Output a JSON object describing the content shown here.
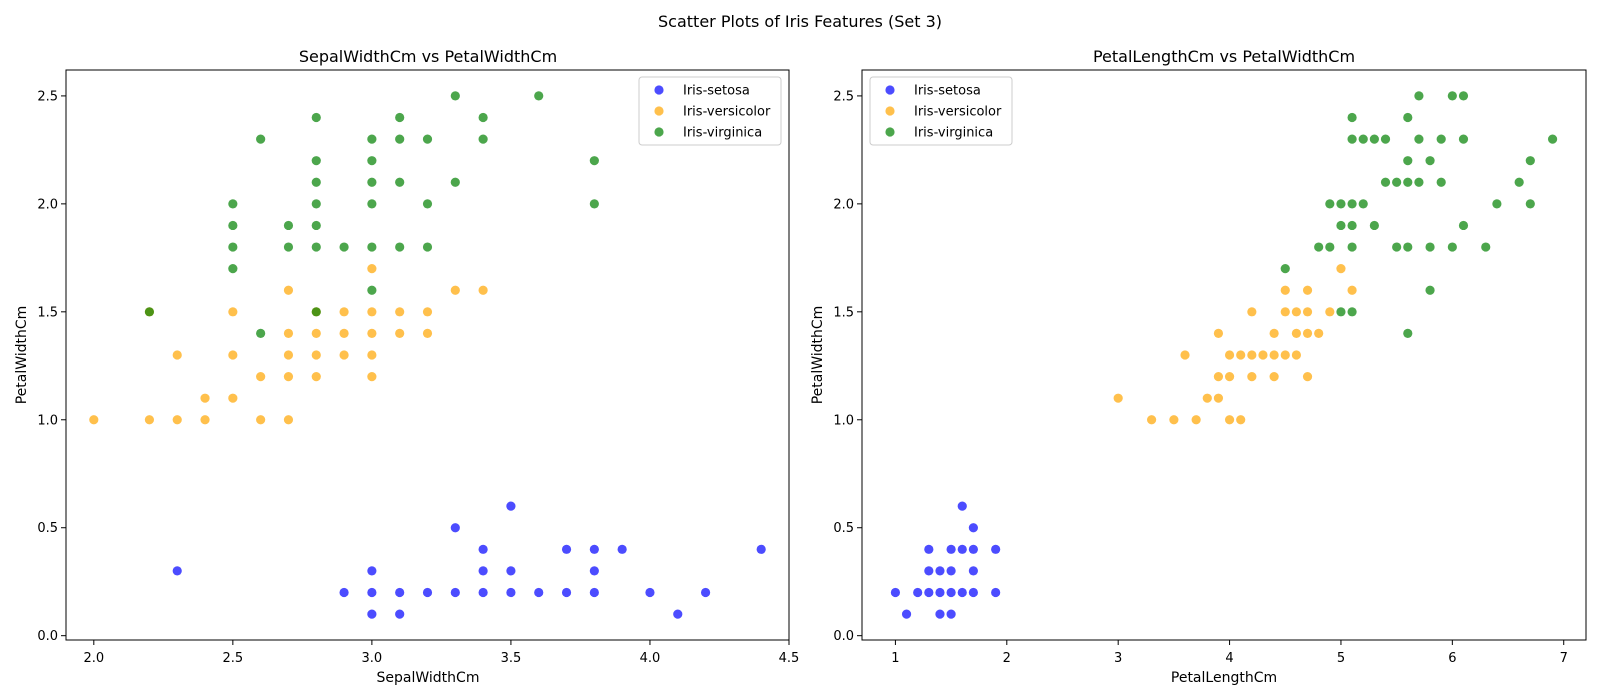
{
  "suptitle": "Scatter Plots of Iris Features (Set 3)",
  "colors": {
    "Iris-setosa": "#0000ff",
    "Iris-versicolor": "#ffa500",
    "Iris-virginica": "#008000"
  },
  "chart_data": [
    {
      "type": "scatter",
      "title": "SepalWidthCm vs PetalWidthCm",
      "xlabel": "SepalWidthCm",
      "ylabel": "PetalWidthCm",
      "xlim": [
        1.9,
        4.5
      ],
      "ylim": [
        -0.02,
        2.62
      ],
      "xticks": [
        2.0,
        2.5,
        3.0,
        3.5,
        4.0,
        4.5
      ],
      "yticks": [
        0.0,
        0.5,
        1.0,
        1.5,
        2.0,
        2.5
      ],
      "xtick_labels": [
        "2.0",
        "2.5",
        "3.0",
        "3.5",
        "4.0",
        "4.5"
      ],
      "ytick_labels": [
        "0.0",
        "0.5",
        "1.0",
        "1.5",
        "2.0",
        "2.5"
      ],
      "legend_position": "top-right",
      "series": [
        {
          "name": "Iris-setosa",
          "points": [
            [
              2.3,
              0.3
            ],
            [
              2.9,
              0.2
            ],
            [
              3.0,
              0.2
            ],
            [
              3.0,
              0.3
            ],
            [
              3.0,
              0.1
            ],
            [
              3.1,
              0.2
            ],
            [
              3.1,
              0.1
            ],
            [
              3.2,
              0.2
            ],
            [
              3.3,
              0.2
            ],
            [
              3.3,
              0.5
            ],
            [
              3.4,
              0.2
            ],
            [
              3.4,
              0.3
            ],
            [
              3.4,
              0.4
            ],
            [
              3.5,
              0.2
            ],
            [
              3.5,
              0.3
            ],
            [
              3.5,
              0.6
            ],
            [
              3.6,
              0.2
            ],
            [
              3.7,
              0.2
            ],
            [
              3.7,
              0.4
            ],
            [
              3.8,
              0.2
            ],
            [
              3.8,
              0.3
            ],
            [
              3.8,
              0.4
            ],
            [
              3.9,
              0.4
            ],
            [
              4.0,
              0.2
            ],
            [
              4.1,
              0.1
            ],
            [
              4.2,
              0.2
            ],
            [
              4.4,
              0.4
            ]
          ]
        },
        {
          "name": "Iris-versicolor",
          "points": [
            [
              2.0,
              1.0
            ],
            [
              2.2,
              1.0
            ],
            [
              2.2,
              1.5
            ],
            [
              2.3,
              1.0
            ],
            [
              2.3,
              1.3
            ],
            [
              2.4,
              1.0
            ],
            [
              2.4,
              1.1
            ],
            [
              2.5,
              1.1
            ],
            [
              2.5,
              1.3
            ],
            [
              2.5,
              1.5
            ],
            [
              2.6,
              1.0
            ],
            [
              2.6,
              1.2
            ],
            [
              2.7,
              1.0
            ],
            [
              2.7,
              1.2
            ],
            [
              2.7,
              1.3
            ],
            [
              2.7,
              1.4
            ],
            [
              2.7,
              1.6
            ],
            [
              2.8,
              1.2
            ],
            [
              2.8,
              1.3
            ],
            [
              2.8,
              1.4
            ],
            [
              2.8,
              1.5
            ],
            [
              2.9,
              1.3
            ],
            [
              2.9,
              1.4
            ],
            [
              2.9,
              1.5
            ],
            [
              3.0,
              1.2
            ],
            [
              3.0,
              1.3
            ],
            [
              3.0,
              1.4
            ],
            [
              3.0,
              1.5
            ],
            [
              3.0,
              1.7
            ],
            [
              3.1,
              1.4
            ],
            [
              3.1,
              1.5
            ],
            [
              3.2,
              1.4
            ],
            [
              3.2,
              1.5
            ],
            [
              3.3,
              1.6
            ],
            [
              3.4,
              1.6
            ]
          ]
        },
        {
          "name": "Iris-virginica",
          "points": [
            [
              2.2,
              1.5
            ],
            [
              2.5,
              1.7
            ],
            [
              2.5,
              1.8
            ],
            [
              2.5,
              1.9
            ],
            [
              2.5,
              2.0
            ],
            [
              2.6,
              1.4
            ],
            [
              2.6,
              2.3
            ],
            [
              2.7,
              1.8
            ],
            [
              2.7,
              1.9
            ],
            [
              2.8,
              1.5
            ],
            [
              2.8,
              1.8
            ],
            [
              2.8,
              1.9
            ],
            [
              2.8,
              2.0
            ],
            [
              2.8,
              2.1
            ],
            [
              2.8,
              2.2
            ],
            [
              2.8,
              2.4
            ],
            [
              2.9,
              1.8
            ],
            [
              3.0,
              1.6
            ],
            [
              3.0,
              1.8
            ],
            [
              3.0,
              2.0
            ],
            [
              3.0,
              2.1
            ],
            [
              3.0,
              2.2
            ],
            [
              3.0,
              2.3
            ],
            [
              3.1,
              1.8
            ],
            [
              3.1,
              2.1
            ],
            [
              3.1,
              2.3
            ],
            [
              3.1,
              2.4
            ],
            [
              3.2,
              1.8
            ],
            [
              3.2,
              2.0
            ],
            [
              3.2,
              2.3
            ],
            [
              3.3,
              2.1
            ],
            [
              3.3,
              2.5
            ],
            [
              3.4,
              2.3
            ],
            [
              3.4,
              2.4
            ],
            [
              3.6,
              2.5
            ],
            [
              3.8,
              2.0
            ],
            [
              3.8,
              2.2
            ]
          ]
        }
      ]
    },
    {
      "type": "scatter",
      "title": "PetalLengthCm vs PetalWidthCm",
      "xlabel": "PetalLengthCm",
      "ylabel": "PetalWidthCm",
      "xlim": [
        0.7,
        7.2
      ],
      "ylim": [
        -0.02,
        2.62
      ],
      "xticks": [
        1,
        2,
        3,
        4,
        5,
        6,
        7
      ],
      "yticks": [
        0.0,
        0.5,
        1.0,
        1.5,
        2.0,
        2.5
      ],
      "xtick_labels": [
        "1",
        "2",
        "3",
        "4",
        "5",
        "6",
        "7"
      ],
      "ytick_labels": [
        "0.0",
        "0.5",
        "1.0",
        "1.5",
        "2.0",
        "2.5"
      ],
      "legend_position": "top-left",
      "series": [
        {
          "name": "Iris-setosa",
          "points": [
            [
              1.0,
              0.2
            ],
            [
              1.1,
              0.1
            ],
            [
              1.2,
              0.2
            ],
            [
              1.3,
              0.2
            ],
            [
              1.3,
              0.3
            ],
            [
              1.3,
              0.4
            ],
            [
              1.4,
              0.1
            ],
            [
              1.4,
              0.2
            ],
            [
              1.4,
              0.3
            ],
            [
              1.5,
              0.1
            ],
            [
              1.5,
              0.2
            ],
            [
              1.5,
              0.3
            ],
            [
              1.5,
              0.4
            ],
            [
              1.6,
              0.2
            ],
            [
              1.6,
              0.4
            ],
            [
              1.6,
              0.6
            ],
            [
              1.7,
              0.2
            ],
            [
              1.7,
              0.3
            ],
            [
              1.7,
              0.4
            ],
            [
              1.7,
              0.5
            ],
            [
              1.9,
              0.2
            ],
            [
              1.9,
              0.4
            ]
          ]
        },
        {
          "name": "Iris-versicolor",
          "points": [
            [
              3.0,
              1.1
            ],
            [
              3.3,
              1.0
            ],
            [
              3.5,
              1.0
            ],
            [
              3.6,
              1.3
            ],
            [
              3.7,
              1.0
            ],
            [
              3.8,
              1.1
            ],
            [
              3.9,
              1.1
            ],
            [
              3.9,
              1.2
            ],
            [
              3.9,
              1.4
            ],
            [
              4.0,
              1.0
            ],
            [
              4.0,
              1.2
            ],
            [
              4.0,
              1.3
            ],
            [
              4.1,
              1.0
            ],
            [
              4.1,
              1.3
            ],
            [
              4.2,
              1.2
            ],
            [
              4.2,
              1.3
            ],
            [
              4.2,
              1.5
            ],
            [
              4.3,
              1.3
            ],
            [
              4.4,
              1.2
            ],
            [
              4.4,
              1.3
            ],
            [
              4.4,
              1.4
            ],
            [
              4.5,
              1.3
            ],
            [
              4.5,
              1.5
            ],
            [
              4.5,
              1.6
            ],
            [
              4.6,
              1.3
            ],
            [
              4.6,
              1.4
            ],
            [
              4.6,
              1.5
            ],
            [
              4.7,
              1.2
            ],
            [
              4.7,
              1.4
            ],
            [
              4.7,
              1.5
            ],
            [
              4.7,
              1.6
            ],
            [
              4.8,
              1.4
            ],
            [
              4.9,
              1.5
            ],
            [
              5.0,
              1.7
            ],
            [
              5.1,
              1.6
            ]
          ]
        },
        {
          "name": "Iris-virginica",
          "points": [
            [
              4.5,
              1.7
            ],
            [
              4.8,
              1.8
            ],
            [
              4.9,
              1.8
            ],
            [
              4.9,
              2.0
            ],
            [
              5.0,
              1.5
            ],
            [
              5.0,
              1.9
            ],
            [
              5.0,
              2.0
            ],
            [
              5.1,
              1.5
            ],
            [
              5.1,
              1.8
            ],
            [
              5.1,
              1.9
            ],
            [
              5.1,
              2.0
            ],
            [
              5.1,
              2.3
            ],
            [
              5.1,
              2.4
            ],
            [
              5.2,
              2.0
            ],
            [
              5.2,
              2.3
            ],
            [
              5.3,
              1.9
            ],
            [
              5.3,
              2.3
            ],
            [
              5.4,
              2.1
            ],
            [
              5.4,
              2.3
            ],
            [
              5.5,
              1.8
            ],
            [
              5.5,
              2.1
            ],
            [
              5.6,
              1.4
            ],
            [
              5.6,
              1.8
            ],
            [
              5.6,
              2.1
            ],
            [
              5.6,
              2.2
            ],
            [
              5.6,
              2.4
            ],
            [
              5.7,
              2.1
            ],
            [
              5.7,
              2.3
            ],
            [
              5.7,
              2.5
            ],
            [
              5.8,
              1.6
            ],
            [
              5.8,
              1.8
            ],
            [
              5.8,
              2.2
            ],
            [
              5.9,
              2.1
            ],
            [
              5.9,
              2.3
            ],
            [
              6.0,
              1.8
            ],
            [
              6.0,
              2.5
            ],
            [
              6.1,
              1.9
            ],
            [
              6.1,
              2.3
            ],
            [
              6.1,
              2.5
            ],
            [
              6.3,
              1.8
            ],
            [
              6.4,
              2.0
            ],
            [
              6.6,
              2.1
            ],
            [
              6.7,
              2.0
            ],
            [
              6.7,
              2.2
            ],
            [
              6.9,
              2.3
            ]
          ]
        }
      ]
    }
  ]
}
